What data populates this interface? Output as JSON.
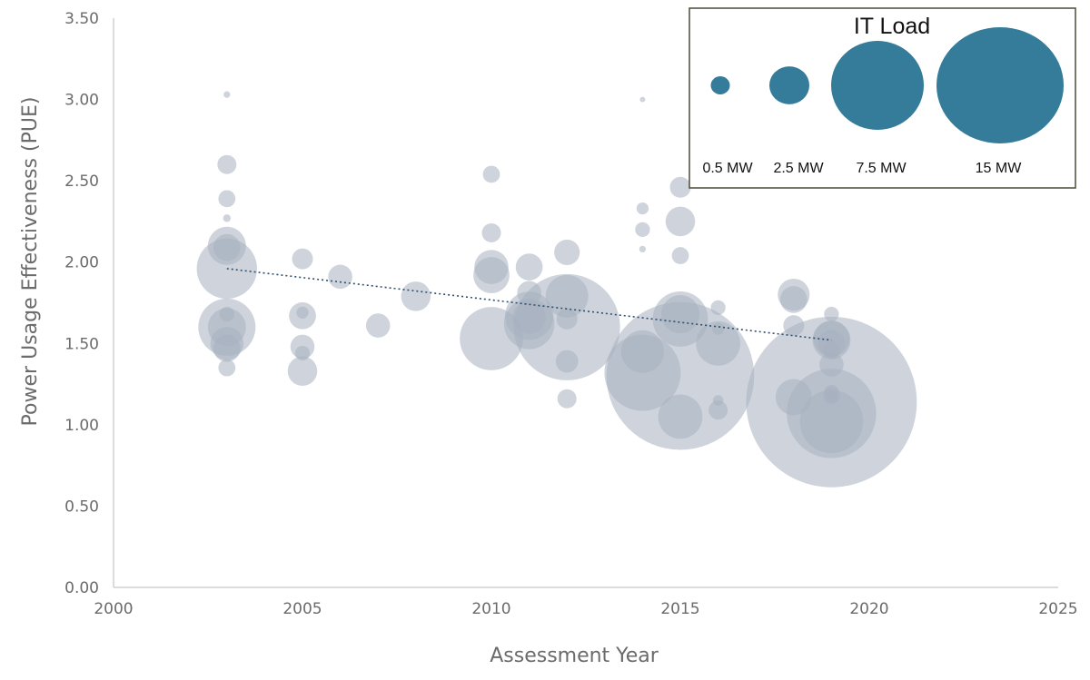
{
  "chart_data": {
    "type": "scatter",
    "xlabel": "Assessment Year",
    "ylabel": "Power Usage Effectiveness (PUE)",
    "xlim": [
      2000,
      2025
    ],
    "ylim": [
      0,
      3.5
    ],
    "x_ticks": [
      2000,
      2005,
      2010,
      2015,
      2020,
      2025
    ],
    "x_tick_labels": [
      "2000",
      "2005",
      "2010",
      "2015",
      "2020",
      "2025"
    ],
    "y_ticks": [
      0,
      0.5,
      1,
      1.5,
      2,
      2.5,
      3,
      3.5
    ],
    "y_tick_labels": [
      "0.00",
      "0.50",
      "1.00",
      "1.50",
      "2.00",
      "2.50",
      "3.00",
      "3.50"
    ],
    "grid": false,
    "legend_position": "top-right",
    "colors": {
      "bubble": "#a8b1bf",
      "legend_bubble": "#347c99",
      "trendline": "#2e4f6e",
      "axis": "#d0d0d0",
      "legend_border": "#4a4a3a"
    },
    "bubble_size_legend": {
      "title": "IT Load",
      "items": [
        {
          "label": "0.5 MW",
          "mw": 0.5
        },
        {
          "label": "2.5 MW",
          "mw": 2.5
        },
        {
          "label": "7.5 MW",
          "mw": 7.5
        },
        {
          "label": "15 MW",
          "mw": 15
        }
      ]
    },
    "trendline": {
      "style": "dotted",
      "x": [
        2003,
        2019
      ],
      "y": [
        1.96,
        1.52
      ]
    },
    "series": [
      {
        "x": [
          2003,
          2003,
          2003,
          2003,
          2003,
          2003,
          2003,
          2003,
          2003,
          2003,
          2003,
          2003,
          2003,
          2005,
          2005,
          2005,
          2005,
          2005,
          2005,
          2006,
          2007,
          2008,
          2010,
          2010,
          2010,
          2010,
          2010,
          2011,
          2011,
          2011,
          2011,
          2011,
          2012,
          2012,
          2012,
          2012,
          2012,
          2012,
          2014,
          2014,
          2014,
          2014,
          2014,
          2014,
          2015,
          2015,
          2015,
          2015,
          2015,
          2015,
          2015,
          2016,
          2016,
          2016,
          2016,
          2016,
          2018,
          2018,
          2018,
          2018,
          2019,
          2019,
          2019,
          2019,
          2019,
          2019,
          2019,
          2019,
          2019,
          2019,
          2019,
          2019
        ],
        "y": [
          3.03,
          2.6,
          2.39,
          2.27,
          2.1,
          1.96,
          1.6,
          1.6,
          1.5,
          1.47,
          1.35,
          1.68,
          2.09,
          2.02,
          1.67,
          1.48,
          1.44,
          1.33,
          1.69,
          1.91,
          1.61,
          1.79,
          2.54,
          2.18,
          1.97,
          1.92,
          1.53,
          1.97,
          1.81,
          1.67,
          1.66,
          1.62,
          2.06,
          1.79,
          1.65,
          1.6,
          1.39,
          1.16,
          3.0,
          2.33,
          2.2,
          2.08,
          1.45,
          1.32,
          2.46,
          2.25,
          2.04,
          1.68,
          1.65,
          1.3,
          1.05,
          1.72,
          1.59,
          1.5,
          1.15,
          1.09,
          1.8,
          1.77,
          1.61,
          1.17,
          1.68,
          1.53,
          1.5,
          1.46,
          1.37,
          1.2,
          1.18,
          1.17,
          1.07,
          1.02,
          1.52,
          1.14
        ],
        "it_load_mw": [
          0.06,
          0.5,
          0.4,
          0.08,
          2.0,
          5.0,
          4.5,
          2.0,
          1.5,
          1.0,
          0.4,
          0.3,
          1.0,
          0.6,
          1.0,
          0.8,
          0.3,
          1.2,
          0.2,
          0.8,
          0.8,
          1.2,
          0.4,
          0.5,
          1.6,
          1.8,
          5.5,
          1.0,
          0.8,
          3.2,
          1.5,
          3.5,
          0.9,
          2.5,
          0.6,
          15.5,
          0.7,
          0.5,
          0.04,
          0.2,
          0.3,
          0.06,
          2.5,
          8.0,
          0.6,
          1.2,
          0.4,
          2.0,
          4.2,
          30.0,
          2.7,
          0.3,
          0.2,
          2.7,
          0.15,
          0.5,
          1.4,
          1.0,
          0.6,
          1.8,
          0.3,
          1.8,
          1.0,
          0.4,
          0.8,
          0.3,
          0.4,
          0.2,
          11.0,
          5.5,
          2.0,
          40.0
        ]
      }
    ]
  }
}
